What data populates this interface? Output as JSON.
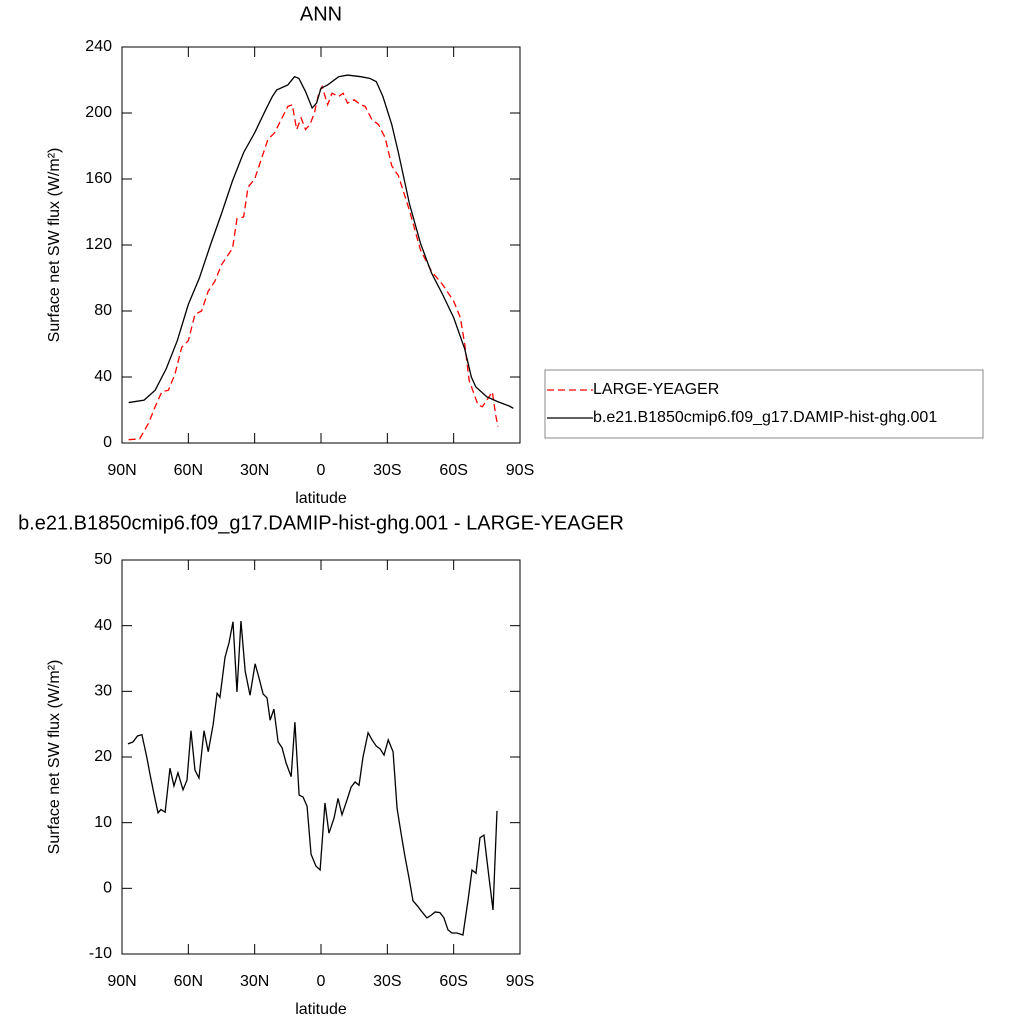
{
  "chart_data": [
    {
      "type": "line",
      "title": "ANN",
      "xlabel": "latitude",
      "ylabel": "Surface net SW flux (W/m²)",
      "xlim": [
        90,
        -90
      ],
      "xticks": [
        {
          "value": 90,
          "label": "90N"
        },
        {
          "value": 60,
          "label": "60N"
        },
        {
          "value": 30,
          "label": "30N"
        },
        0,
        {
          "value": -30,
          "label": "30S"
        },
        {
          "value": -60,
          "label": "60S"
        },
        {
          "value": -90,
          "label": "90S"
        }
      ],
      "ylim": [
        0,
        240
      ],
      "yticks": [
        0,
        40,
        80,
        120,
        160,
        200,
        240
      ],
      "legend": "right",
      "series": [
        {
          "name": "LARGE-YEAGER",
          "color": "#ff0000",
          "line_style": "dashed",
          "x": [
            87,
            82,
            78,
            75,
            72,
            69,
            66,
            63,
            60,
            57,
            54,
            51,
            48,
            45,
            42,
            40,
            38,
            35,
            33,
            30,
            27,
            24,
            21,
            18,
            15,
            13,
            11,
            9,
            7,
            5,
            3,
            1,
            -0.5,
            -3,
            -5,
            -8,
            -10,
            -12,
            -15,
            -18,
            -20,
            -23,
            -26,
            -29,
            -32,
            -35,
            -40,
            -45,
            -50,
            -55,
            -60,
            -63,
            -65,
            -67,
            -71,
            -73,
            -75.5,
            -77.5,
            -79,
            -80
          ],
          "values": [
            2,
            2.5,
            12,
            22,
            31,
            32,
            42,
            58,
            62,
            78,
            80,
            92,
            98,
            108,
            114,
            118,
            136,
            137,
            155,
            160,
            172,
            184,
            188,
            196,
            204,
            205,
            190,
            197,
            190,
            193,
            200,
            212,
            216,
            205,
            212,
            210,
            212,
            206,
            208,
            205,
            204,
            196,
            193,
            185,
            168,
            162,
            141,
            117,
            104,
            96,
            86,
            76,
            60,
            38,
            23,
            22,
            27,
            31,
            17,
            10
          ]
        },
        {
          "name": "b.e21.B1850cmip6.f09_g17.DAMIP-hist-ghg.001",
          "color": "#000000",
          "line_style": "solid",
          "x": [
            87,
            80,
            75,
            70,
            65,
            60,
            55,
            50,
            45,
            40,
            35,
            30,
            25,
            22,
            20,
            15,
            12,
            10,
            7,
            4,
            2,
            0,
            -3,
            -8,
            -12,
            -18,
            -22,
            -25,
            -28,
            -32,
            -35,
            -40,
            -45,
            -50,
            -55,
            -60,
            -65,
            -68,
            -70,
            -75,
            -80,
            -85,
            -87
          ],
          "values": [
            24.5,
            26,
            32,
            45,
            62,
            84,
            100,
            120,
            139,
            159,
            176,
            188,
            202,
            210,
            214,
            217,
            222,
            221,
            213,
            203,
            206,
            215,
            217,
            222,
            223,
            222,
            221,
            219,
            210,
            193,
            176,
            145,
            121,
            103,
            90,
            76,
            57,
            40,
            34,
            28,
            25,
            22.5,
            21
          ]
        }
      ]
    },
    {
      "type": "line",
      "title": "b.e21.B1850cmip6.f09_g17.DAMIP-hist-ghg.001 - LARGE-YEAGER",
      "xlabel": "latitude",
      "ylabel": "Surface net SW flux (W/m²)",
      "xlim": [
        90,
        -90
      ],
      "xticks": [
        {
          "value": 90,
          "label": "90N"
        },
        {
          "value": 60,
          "label": "60N"
        },
        {
          "value": 30,
          "label": "30N"
        },
        0,
        {
          "value": -30,
          "label": "30S"
        },
        {
          "value": -60,
          "label": "60S"
        },
        {
          "value": -90,
          "label": "90S"
        }
      ],
      "ylim": [
        -10,
        50
      ],
      "yticks": [
        -10,
        0,
        10,
        20,
        30,
        40,
        50
      ],
      "series": [
        {
          "color": "#000000",
          "line_style": "solid",
          "x": [
            87.3,
            85,
            83,
            81,
            78.8,
            77.3,
            75,
            73.7,
            72.4,
            70.5,
            68.3,
            66.5,
            64.7,
            62.4,
            60.6,
            58.8,
            57,
            55.2,
            52.9,
            51,
            48.8,
            47,
            45.7,
            43.4,
            41.6,
            39.8,
            38,
            36.2,
            34.3,
            32.1,
            29.8,
            28,
            26.2,
            24.4,
            23,
            21.3,
            19.4,
            17.6,
            15.8,
            13.5,
            11.8,
            9.9,
            8.1,
            6.3,
            4.5,
            2.3,
            0.4,
            -1.8,
            -3.6,
            -5.9,
            -7.7,
            -9.5,
            -11.8,
            -13.6,
            -15.4,
            -17.2,
            -19,
            -21.3,
            -23.1,
            -24.9,
            -26.8,
            -28.5,
            -30.4,
            -32.6,
            -34.4,
            -36.2,
            -38,
            -39.8,
            -41.6,
            -43.9,
            -45.7,
            -47.9,
            -49.8,
            -51.6,
            -53.8,
            -55.6,
            -57.4,
            -59.2,
            -61.5,
            -64.2,
            -66.5,
            -68.3,
            -70.1,
            -71.9,
            -73.7,
            -76,
            -77.8,
            -79.6
          ],
          "values": [
            22,
            22.3,
            23.2,
            23.4,
            20,
            17.3,
            13.5,
            11.5,
            12,
            11.6,
            18.3,
            15.6,
            17.6,
            15,
            16.5,
            24,
            18,
            16.8,
            24,
            20.8,
            24.9,
            29.7,
            29.1,
            35.2,
            37.4,
            40.6,
            29.9,
            40.7,
            33.1,
            29.4,
            34.2,
            32,
            29.6,
            29,
            25.6,
            27.3,
            22.3,
            21.4,
            19.1,
            17,
            25.3,
            14.2,
            13.9,
            12.5,
            5.2,
            3.4,
            2.8,
            13,
            8.4,
            10.7,
            13.7,
            11.2,
            13.5,
            15.4,
            16.2,
            15.7,
            20,
            23.7,
            22.6,
            21.7,
            21.2,
            20.3,
            22.6,
            20.8,
            12.2,
            8.4,
            4.8,
            1.6,
            -1.9,
            -2.8,
            -3.6,
            -4.5,
            -4.1,
            -3.6,
            -3.7,
            -4.5,
            -6.3,
            -6.8,
            -6.8,
            -7.1,
            -1.8,
            2.8,
            2.3,
            7.7,
            8.1,
            1.6,
            -3.3,
            11.8
          ]
        }
      ]
    }
  ]
}
